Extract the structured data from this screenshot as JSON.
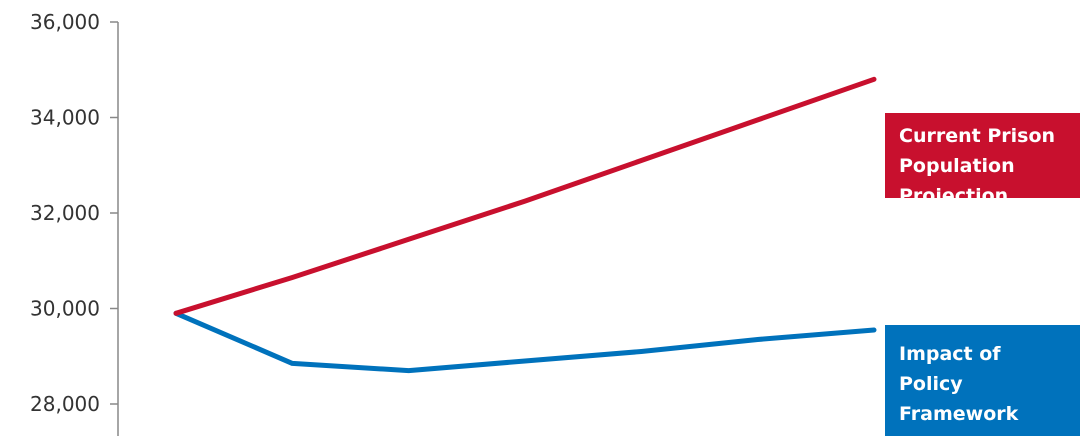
{
  "chart_data": {
    "type": "line",
    "title": "",
    "xlabel": "",
    "ylabel": "",
    "ylim": [
      27700,
      36000
    ],
    "y_ticks": [
      "36,000",
      "34,000",
      "32,000",
      "30,000",
      "28,000"
    ],
    "y_tick_values": [
      36000,
      34000,
      32000,
      30000,
      28000
    ],
    "x": [
      0,
      1,
      2,
      3,
      4,
      5,
      6
    ],
    "series": [
      {
        "name": "Current Prison Population Projection",
        "legend_lines": [
          "Current Prison",
          "Population",
          "Projection"
        ],
        "color": "#c8102e",
        "values": [
          29900,
          30650,
          31450,
          32250,
          33100,
          33950,
          34800
        ]
      },
      {
        "name": "Impact of Policy Framework",
        "legend_lines": [
          "Impact of",
          "Policy",
          "Framework"
        ],
        "color": "#0072bc",
        "values": [
          29900,
          28850,
          28700,
          28900,
          29100,
          29350,
          29550
        ]
      }
    ],
    "grid": false
  }
}
